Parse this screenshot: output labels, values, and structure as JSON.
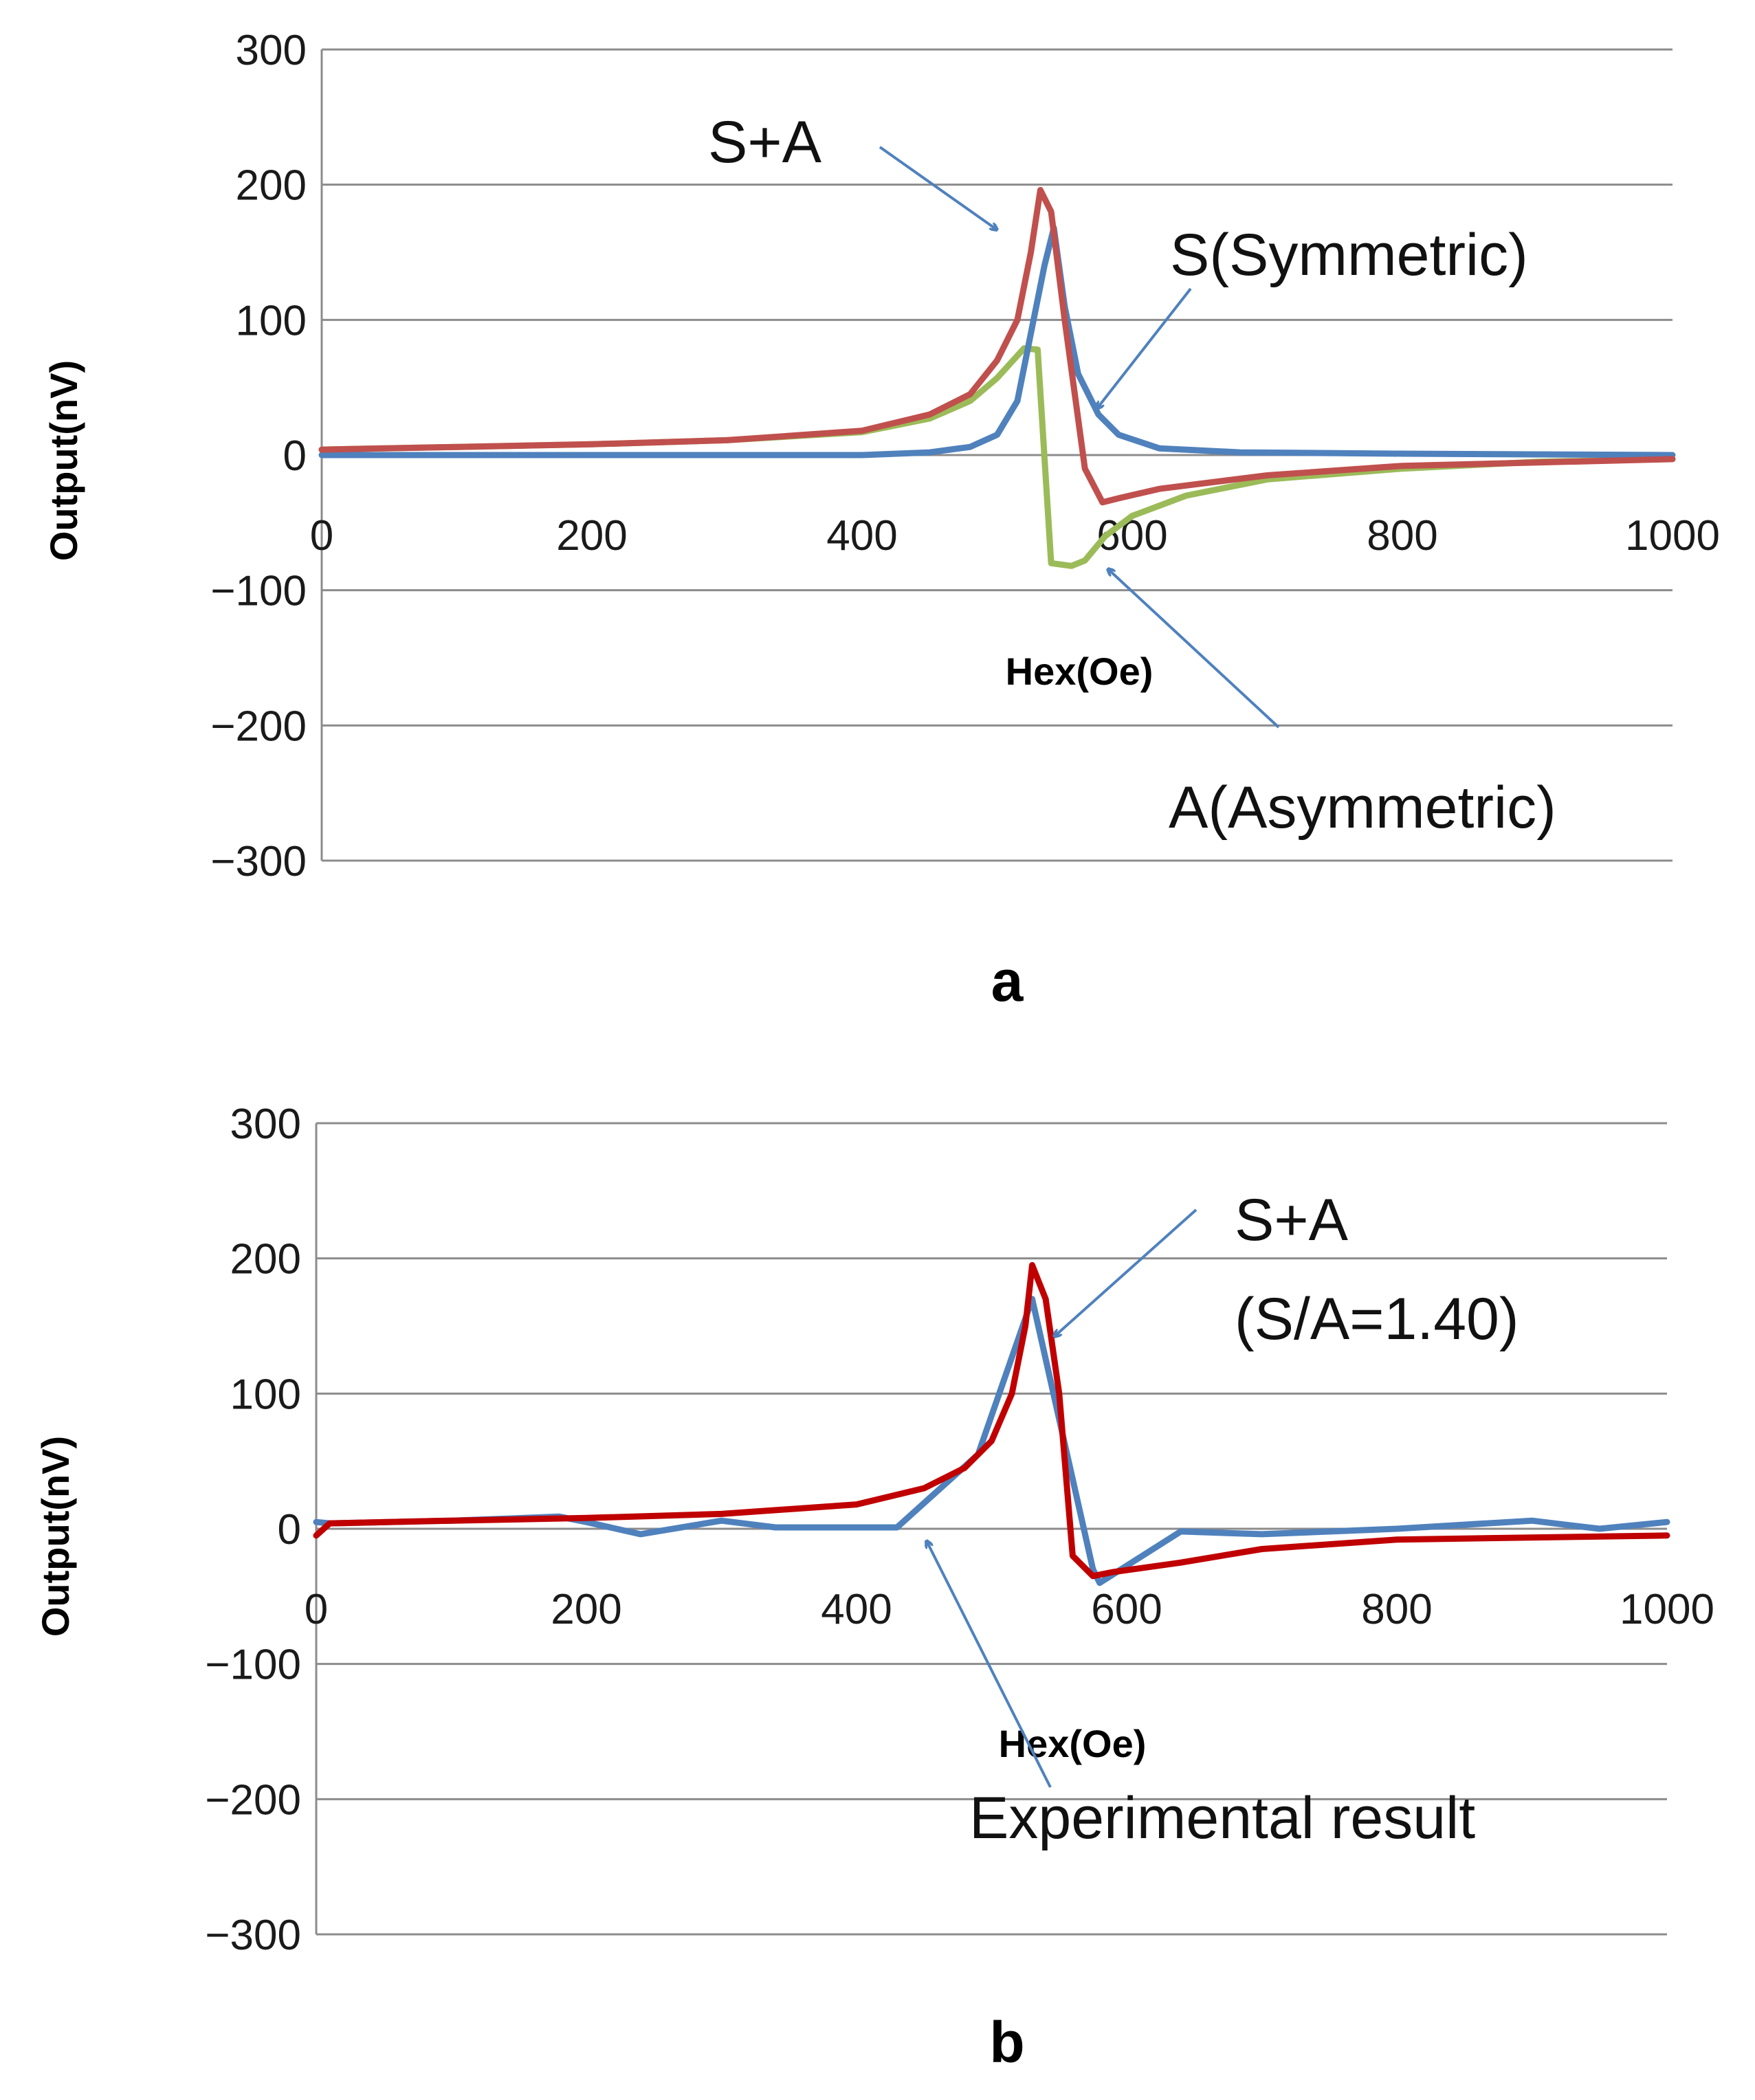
{
  "figure": {
    "panels": [
      "a",
      "b"
    ]
  },
  "colors": {
    "blue": "#4f81bd",
    "red_a": "#c0504d",
    "green": "#9bbb59",
    "red_b": "#c00000",
    "arrow": "#4f81bd"
  },
  "chart_data": [
    {
      "type": "line",
      "panel_label": "a",
      "xlabel": "Hex(Oe)",
      "ylabel": "Output(nV)",
      "xlim": [
        0,
        1000
      ],
      "ylim": [
        -300,
        300
      ],
      "xticks": [
        "0",
        "200",
        "400",
        "600",
        "800",
        "1000"
      ],
      "yticks": [
        "300",
        "200",
        "100",
        "0",
        "−100",
        "−200",
        "−300"
      ],
      "ytick_values": [
        300,
        200,
        100,
        0,
        -100,
        -200,
        -300
      ],
      "xtick_values": [
        0,
        200,
        400,
        600,
        800,
        1000
      ],
      "grid": true,
      "series": [
        {
          "name": "A(Asymmetric)",
          "color": "#9bbb59",
          "x": [
            0,
            100,
            200,
            300,
            400,
            450,
            480,
            500,
            520,
            530,
            540,
            555,
            565,
            580,
            600,
            640,
            700,
            800,
            900,
            1000
          ],
          "y": [
            4,
            6,
            8,
            11,
            17,
            27,
            40,
            57,
            79,
            78,
            -80,
            -82,
            -78,
            -60,
            -45,
            -30,
            -18,
            -10,
            -5,
            -3
          ]
        },
        {
          "name": "S(Symmetric)",
          "color": "#4f81bd",
          "x": [
            0,
            200,
            400,
            450,
            480,
            500,
            515,
            525,
            535,
            542,
            550,
            560,
            575,
            590,
            620,
            680,
            800,
            1000
          ],
          "y": [
            0,
            0,
            0,
            2,
            6,
            15,
            40,
            90,
            140,
            168,
            110,
            60,
            30,
            15,
            5,
            2,
            1,
            0
          ]
        },
        {
          "name": "S+A",
          "color": "#c0504d",
          "x": [
            0,
            100,
            200,
            300,
            400,
            450,
            480,
            500,
            515,
            525,
            532,
            540,
            550,
            565,
            578,
            590,
            620,
            700,
            800,
            1000
          ],
          "y": [
            4,
            6,
            8,
            11,
            18,
            30,
            45,
            70,
            100,
            150,
            196,
            180,
            100,
            -10,
            -35,
            -32,
            -25,
            -15,
            -8,
            -3
          ]
        }
      ],
      "annotations": [
        {
          "label": "S+A",
          "target": "S+A"
        },
        {
          "label": "S(Symmetric)",
          "target": "S(Symmetric)"
        },
        {
          "label": "A(Asymmetric)",
          "target": "A(Asymmetric)"
        }
      ]
    },
    {
      "type": "line",
      "panel_label": "b",
      "xlabel": "Hex(Oe)",
      "ylabel": "Output(nV)",
      "xlim": [
        0,
        1000
      ],
      "ylim": [
        -300,
        300
      ],
      "xticks": [
        "0",
        "200",
        "400",
        "600",
        "800",
        "1000"
      ],
      "yticks": [
        "300",
        "200",
        "100",
        "0",
        "−100",
        "−200",
        "−300"
      ],
      "ytick_values": [
        300,
        200,
        100,
        0,
        -100,
        -200,
        -300
      ],
      "xtick_values": [
        0,
        200,
        400,
        600,
        800,
        1000
      ],
      "grid": true,
      "series": [
        {
          "name": "Experimental result",
          "color": "#4f81bd",
          "x": [
            0,
            10,
            100,
            180,
            200,
            240,
            300,
            340,
            400,
            430,
            490,
            530,
            575,
            580,
            640,
            700,
            800,
            900,
            950,
            1000
          ],
          "y": [
            5,
            4,
            6,
            9,
            5,
            -4,
            6,
            1,
            1,
            1,
            55,
            170,
            -30,
            -40,
            -2,
            -4,
            0,
            6,
            0,
            5
          ]
        },
        {
          "name": "S+A (S/A=1.40)",
          "color": "#c00000",
          "x": [
            0,
            10,
            100,
            200,
            300,
            400,
            450,
            480,
            500,
            515,
            525,
            530,
            540,
            550,
            560,
            575,
            590,
            640,
            700,
            800,
            1000
          ],
          "y": [
            -5,
            4,
            6,
            8,
            11,
            18,
            30,
            45,
            65,
            100,
            150,
            195,
            170,
            100,
            -20,
            -35,
            -32,
            -25,
            -15,
            -8,
            -5
          ]
        }
      ],
      "annotations": [
        {
          "label": "S+A",
          "target": "S+A (S/A=1.40)"
        },
        {
          "label": "(S/A=1.40)",
          "target": "S+A (S/A=1.40)"
        },
        {
          "label": "Experimental result",
          "target": "Experimental result"
        }
      ]
    }
  ]
}
